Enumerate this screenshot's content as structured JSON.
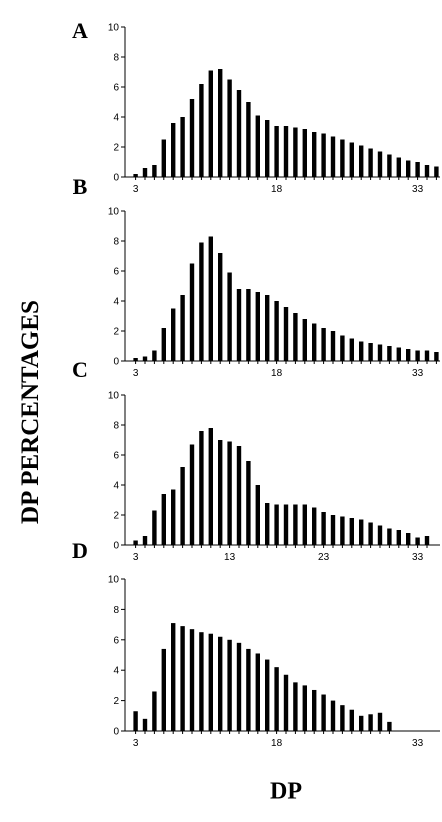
{
  "figure": {
    "ylabel": "DP PERCENTAGES",
    "xlabel": "DP"
  },
  "chart_data": [
    {
      "type": "bar",
      "panel": "A",
      "ylim": [
        0,
        10
      ],
      "yticks": [
        0,
        2,
        4,
        6,
        8,
        10
      ],
      "xticks": [
        3,
        18,
        33
      ],
      "x": [
        3,
        4,
        5,
        6,
        7,
        8,
        9,
        10,
        11,
        12,
        13,
        14,
        15,
        16,
        17,
        18,
        19,
        20,
        21,
        22,
        23,
        24,
        25,
        26,
        27,
        28,
        29,
        30,
        31,
        32,
        33,
        34,
        35
      ],
      "values": [
        0.2,
        0.6,
        0.8,
        2.5,
        3.6,
        4.0,
        5.2,
        6.2,
        7.1,
        7.2,
        6.5,
        5.8,
        5.0,
        4.1,
        3.8,
        3.4,
        3.4,
        3.3,
        3.2,
        3.0,
        2.9,
        2.7,
        2.5,
        2.3,
        2.1,
        1.9,
        1.7,
        1.5,
        1.3,
        1.1,
        1.0,
        0.8,
        0.7
      ]
    },
    {
      "type": "bar",
      "panel": "B",
      "ylim": [
        0,
        10
      ],
      "yticks": [
        0,
        2,
        4,
        6,
        8,
        10
      ],
      "xticks": [
        3,
        18,
        33
      ],
      "x": [
        3,
        4,
        5,
        6,
        7,
        8,
        9,
        10,
        11,
        12,
        13,
        14,
        15,
        16,
        17,
        18,
        19,
        20,
        21,
        22,
        23,
        24,
        25,
        26,
        27,
        28,
        29,
        30,
        31,
        32,
        33,
        34,
        35
      ],
      "values": [
        0.2,
        0.3,
        0.7,
        2.2,
        3.5,
        4.4,
        6.5,
        7.9,
        8.3,
        7.2,
        5.9,
        4.8,
        4.8,
        4.6,
        4.4,
        4.0,
        3.6,
        3.2,
        2.8,
        2.5,
        2.2,
        2.0,
        1.7,
        1.5,
        1.3,
        1.2,
        1.1,
        1.0,
        0.9,
        0.8,
        0.7,
        0.7,
        0.6
      ]
    },
    {
      "type": "bar",
      "panel": "C",
      "ylim": [
        0,
        10
      ],
      "yticks": [
        0,
        2,
        4,
        6,
        8,
        10
      ],
      "xticks": [
        3,
        13,
        23,
        33
      ],
      "x": [
        3,
        4,
        5,
        6,
        7,
        8,
        9,
        10,
        11,
        12,
        13,
        14,
        15,
        16,
        17,
        18,
        19,
        20,
        21,
        22,
        23,
        24,
        25,
        26,
        27,
        28,
        29,
        30,
        31,
        32,
        33,
        34
      ],
      "values": [
        0.3,
        0.6,
        2.3,
        3.4,
        3.7,
        5.2,
        6.7,
        7.6,
        7.8,
        7.0,
        6.9,
        6.6,
        5.6,
        4.0,
        2.8,
        2.7,
        2.7,
        2.7,
        2.7,
        2.5,
        2.2,
        2.0,
        1.9,
        1.8,
        1.7,
        1.5,
        1.3,
        1.1,
        1.0,
        0.8,
        0.5,
        0.6
      ]
    },
    {
      "type": "bar",
      "panel": "D",
      "ylim": [
        0,
        10
      ],
      "yticks": [
        0,
        2,
        4,
        6,
        8,
        10
      ],
      "xticks": [
        3,
        18,
        33
      ],
      "x": [
        3,
        4,
        5,
        6,
        7,
        8,
        9,
        10,
        11,
        12,
        13,
        14,
        15,
        16,
        17,
        18,
        19,
        20,
        21,
        22,
        23,
        24,
        25,
        26,
        27,
        28,
        29,
        30
      ],
      "values": [
        1.3,
        0.8,
        2.6,
        5.4,
        7.1,
        6.9,
        6.7,
        6.5,
        6.4,
        6.2,
        6.0,
        5.8,
        5.4,
        5.1,
        4.7,
        4.2,
        3.7,
        3.2,
        3.0,
        2.7,
        2.4,
        2.0,
        1.7,
        1.4,
        1.0,
        1.1,
        1.2,
        0.6
      ]
    }
  ]
}
